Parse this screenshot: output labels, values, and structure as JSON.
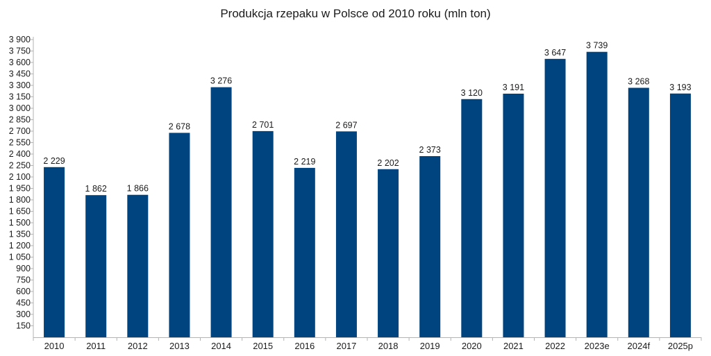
{
  "chart_data": {
    "type": "bar",
    "title": "Produkcja rzepaku w Polsce od 2010 roku (mln ton)",
    "xlabel": "",
    "ylabel": "",
    "categories": [
      "2010",
      "2011",
      "2012",
      "2013",
      "2014",
      "2015",
      "2016",
      "2017",
      "2018",
      "2019",
      "2020",
      "2021",
      "2022",
      "2023e",
      "2024f",
      "2025p"
    ],
    "values": [
      2229,
      1862,
      1866,
      2678,
      3276,
      2701,
      2219,
      2697,
      2202,
      2373,
      3120,
      3191,
      3647,
      3739,
      3268,
      3193
    ],
    "data_labels": [
      "2 229",
      "1 862",
      "1 866",
      "2 678",
      "3 276",
      "2 701",
      "2 219",
      "2 697",
      "2 202",
      "2 373",
      "3 120",
      "3 191",
      "3 647",
      "3 739",
      "3 268",
      "3 193"
    ],
    "y_ticks": [
      150,
      300,
      450,
      600,
      750,
      900,
      1050,
      1200,
      1350,
      1500,
      1650,
      1800,
      1950,
      2100,
      2250,
      2400,
      2550,
      2700,
      2850,
      3000,
      3150,
      3300,
      3450,
      3600,
      3750,
      3900
    ],
    "y_tick_labels": [
      "150",
      "300",
      "450",
      "600",
      "750",
      "900",
      "1 050",
      "1 200",
      "1 350",
      "1 500",
      "1 650",
      "1 800",
      "1 950",
      "2 100",
      "2 250",
      "2 400",
      "2 550",
      "2 700",
      "2 850",
      "3 000",
      "3 150",
      "3 300",
      "3 450",
      "3 600",
      "3 750",
      "3 900"
    ],
    "ylim": [
      0,
      3900
    ],
    "grid": false,
    "legend": "none",
    "bar_color": "#00447f"
  }
}
